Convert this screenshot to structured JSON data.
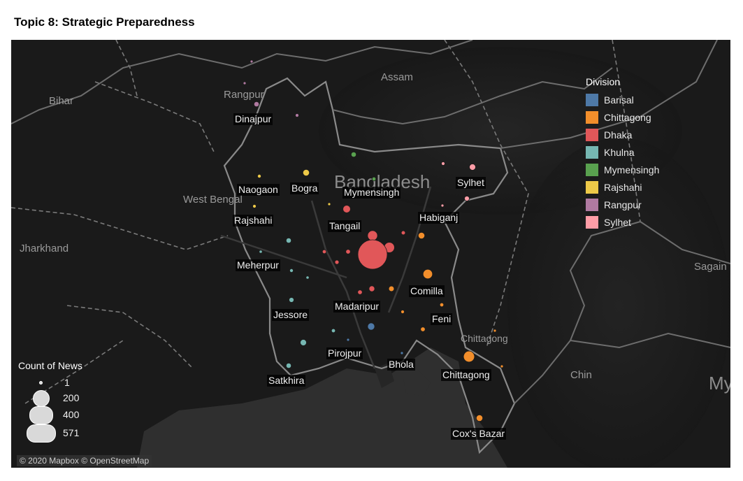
{
  "title": "Topic 8: Strategic Preparedness",
  "map": {
    "attribution": "© 2020 Mapbox © OpenStreetMap",
    "region_labels": [
      {
        "text": "Bihar"
      },
      {
        "text": "Assam"
      },
      {
        "text": "West Bengal"
      },
      {
        "text": "Jharkhand"
      },
      {
        "text": "Chin"
      },
      {
        "text": "Sagain"
      },
      {
        "text": "My"
      }
    ],
    "country_label": "Bangladesh",
    "city_labels": [
      "Rangpur",
      "Dinajpur",
      "Naogaon",
      "Bogra",
      "Mymensingh",
      "Sylhet",
      "Rajshahi",
      "Tangail",
      "Habiganj",
      "Meherpur",
      "Comilla",
      "Madaripur",
      "Jessore",
      "Feni",
      "Chittagong",
      "Pirojpur",
      "Bhola",
      "Chittagong",
      "Satkhira",
      "Cox's Bazar"
    ]
  },
  "legend": {
    "title": "Division",
    "items": [
      {
        "label": "Barisal",
        "color": "#4e79a7"
      },
      {
        "label": "Chittagong",
        "color": "#f28e2b"
      },
      {
        "label": "Dhaka",
        "color": "#e15759"
      },
      {
        "label": "Khulna",
        "color": "#76b7b2"
      },
      {
        "label": "Mymensingh",
        "color": "#59a14f"
      },
      {
        "label": "Rajshahi",
        "color": "#edc948"
      },
      {
        "label": "Rangpur",
        "color": "#b07aa1"
      },
      {
        "label": "Sylhet",
        "color": "#ff9da7"
      }
    ]
  },
  "size_legend": {
    "title": "Count of News",
    "values": [
      "1",
      "200",
      "400",
      "571"
    ]
  },
  "points": [
    {
      "division": "Rangpur",
      "count": 4
    },
    {
      "division": "Rangpur",
      "count": 4
    },
    {
      "division": "Rangpur",
      "count": 18
    },
    {
      "division": "Rangpur",
      "count": 8
    },
    {
      "division": "Rajshahi",
      "count": 9
    },
    {
      "division": "Rajshahi",
      "count": 28
    },
    {
      "division": "Rajshahi",
      "count": 8
    },
    {
      "division": "Rajshahi",
      "count": 3
    },
    {
      "division": "Mymensingh",
      "count": 18
    },
    {
      "division": "Mymensingh",
      "count": 10
    },
    {
      "division": "Sylhet",
      "count": 8
    },
    {
      "division": "Sylhet",
      "count": 26
    },
    {
      "division": "Sylhet",
      "count": 16
    },
    {
      "division": "Sylhet",
      "count": 2
    },
    {
      "division": "Dhaka",
      "count": 38
    },
    {
      "division": "Dhaka",
      "count": 66
    },
    {
      "division": "Dhaka",
      "count": 70
    },
    {
      "division": "Dhaka",
      "count": 571
    },
    {
      "division": "Dhaka",
      "count": 11
    },
    {
      "division": "Dhaka",
      "count": 14
    },
    {
      "division": "Dhaka",
      "count": 10
    },
    {
      "division": "Dhaka",
      "count": 12
    },
    {
      "division": "Dhaka",
      "count": 22
    },
    {
      "division": "Dhaka",
      "count": 14
    },
    {
      "division": "Chittagong",
      "count": 28
    },
    {
      "division": "Chittagong",
      "count": 60
    },
    {
      "division": "Chittagong",
      "count": 20
    },
    {
      "division": "Chittagong",
      "count": 8
    },
    {
      "division": "Chittagong",
      "count": 10
    },
    {
      "division": "Chittagong",
      "count": 14
    },
    {
      "division": "Chittagong",
      "count": 80
    },
    {
      "division": "Chittagong",
      "count": 2
    },
    {
      "division": "Chittagong",
      "count": 2
    },
    {
      "division": "Chittagong",
      "count": 28
    },
    {
      "division": "Khulna",
      "count": 18
    },
    {
      "division": "Khulna",
      "count": 6
    },
    {
      "division": "Khulna",
      "count": 9
    },
    {
      "division": "Khulna",
      "count": 6
    },
    {
      "division": "Khulna",
      "count": 16
    },
    {
      "division": "Khulna",
      "count": 10
    },
    {
      "division": "Khulna",
      "count": 26
    },
    {
      "division": "Khulna",
      "count": 18
    },
    {
      "division": "Barisal",
      "count": 34
    },
    {
      "division": "Barisal",
      "count": 5
    },
    {
      "division": "Barisal",
      "count": 3
    }
  ]
}
